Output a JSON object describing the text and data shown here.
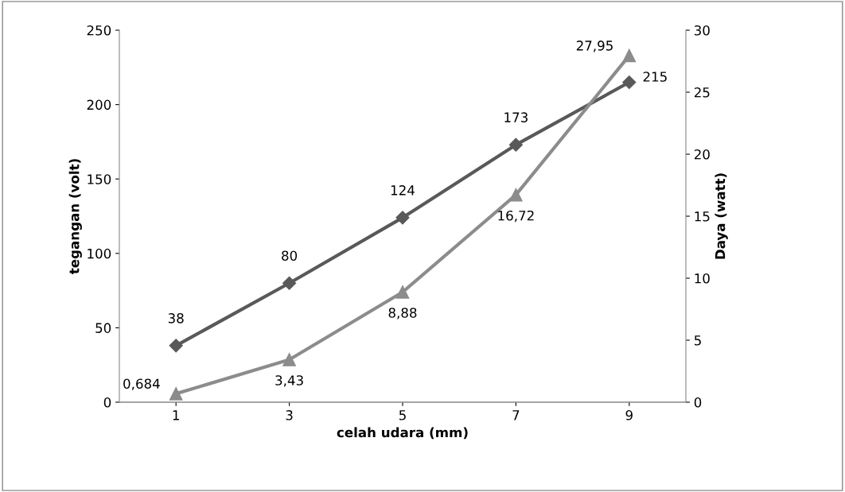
{
  "chart_data": {
    "type": "line",
    "xlabel": "celah udara (mm)",
    "ylabel": "tegangan (volt)",
    "y2label": "Daya (watt)",
    "categories": [
      "1",
      "3",
      "5",
      "7",
      "9"
    ],
    "series": [
      {
        "color": "#595959",
        "marker": "diamond",
        "values": [
          38,
          80,
          124,
          173,
          215
        ],
        "value_labels": [
          "38",
          "80",
          "124",
          "173",
          "215"
        ]
      },
      {
        "color": "#8c8c8c",
        "marker": "triangle",
        "axis": "y2",
        "values": [
          0.684,
          3.43,
          8.88,
          16.72,
          27.95
        ],
        "value_labels": [
          "0,684",
          "3,43",
          "8,88",
          "16,72",
          "27,95"
        ]
      }
    ],
    "ylim": [
      0,
      250
    ],
    "yticks": [
      0,
      50,
      100,
      150,
      200,
      250
    ],
    "y2lim": [
      0,
      30
    ],
    "y2ticks": [
      0,
      5,
      10,
      15,
      20,
      25,
      30
    ],
    "grid": false,
    "legend": false
  }
}
